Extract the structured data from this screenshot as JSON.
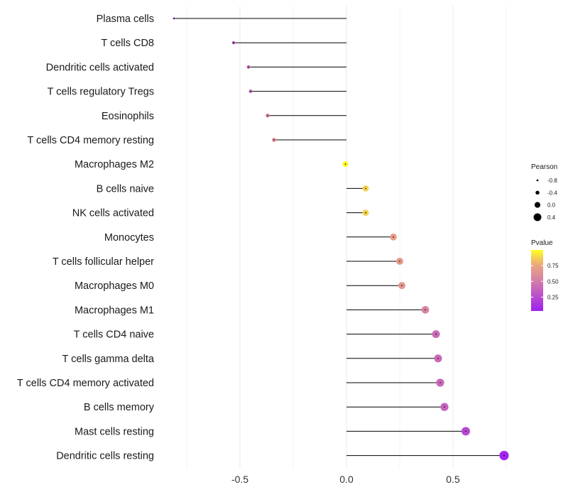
{
  "chart_data": {
    "type": "lollipop",
    "title": "",
    "xlabel": "",
    "ylabel": "",
    "xlim": [
      -0.9,
      0.8
    ],
    "x_ticks": [
      -0.5,
      0.0,
      0.5
    ],
    "x_tick_labels": [
      "-0.5",
      "0.0",
      "0.5"
    ],
    "categories": [
      "Plasma cells",
      "T cells CD8",
      "Dendritic cells activated",
      "T cells regulatory  Tregs ",
      "Eosinophils",
      "T cells CD4 memory resting",
      "Macrophages M2",
      "B cells naive",
      "NK cells activated",
      "Monocytes",
      "T cells follicular helper",
      "Macrophages M0",
      "Macrophages M1",
      "T cells CD4 naive",
      "T cells gamma delta",
      "T cells CD4 memory activated",
      "B cells memory",
      "Mast cells resting",
      "Dendritic cells resting"
    ],
    "pearson": [
      -0.81,
      -0.53,
      -0.46,
      -0.45,
      -0.37,
      -0.34,
      -0.005,
      0.09,
      0.09,
      0.22,
      0.25,
      0.26,
      0.37,
      0.42,
      0.43,
      0.44,
      0.46,
      0.56,
      0.74
    ],
    "pvalue": [
      0.06,
      0.3,
      0.4,
      0.41,
      0.55,
      0.6,
      0.99,
      0.88,
      0.87,
      0.7,
      0.68,
      0.67,
      0.55,
      0.42,
      0.41,
      0.4,
      0.37,
      0.23,
      0.05
    ],
    "legend_size": {
      "title": "Pearson",
      "labels": [
        "-0.8",
        "-0.4",
        "0.0",
        "0.4"
      ],
      "values": [
        -0.8,
        -0.4,
        0.0,
        0.4
      ]
    },
    "legend_color": {
      "title": "Pvalue",
      "labels": [
        "0.75",
        "0.50",
        "0.25"
      ],
      "values": [
        0.75,
        0.5,
        0.25
      ],
      "range": [
        0.03,
        1.0
      ],
      "colors": [
        "#a020f0",
        "#ffff22"
      ]
    },
    "stem_color": "#000000",
    "grid_color": "#ebebeb"
  }
}
